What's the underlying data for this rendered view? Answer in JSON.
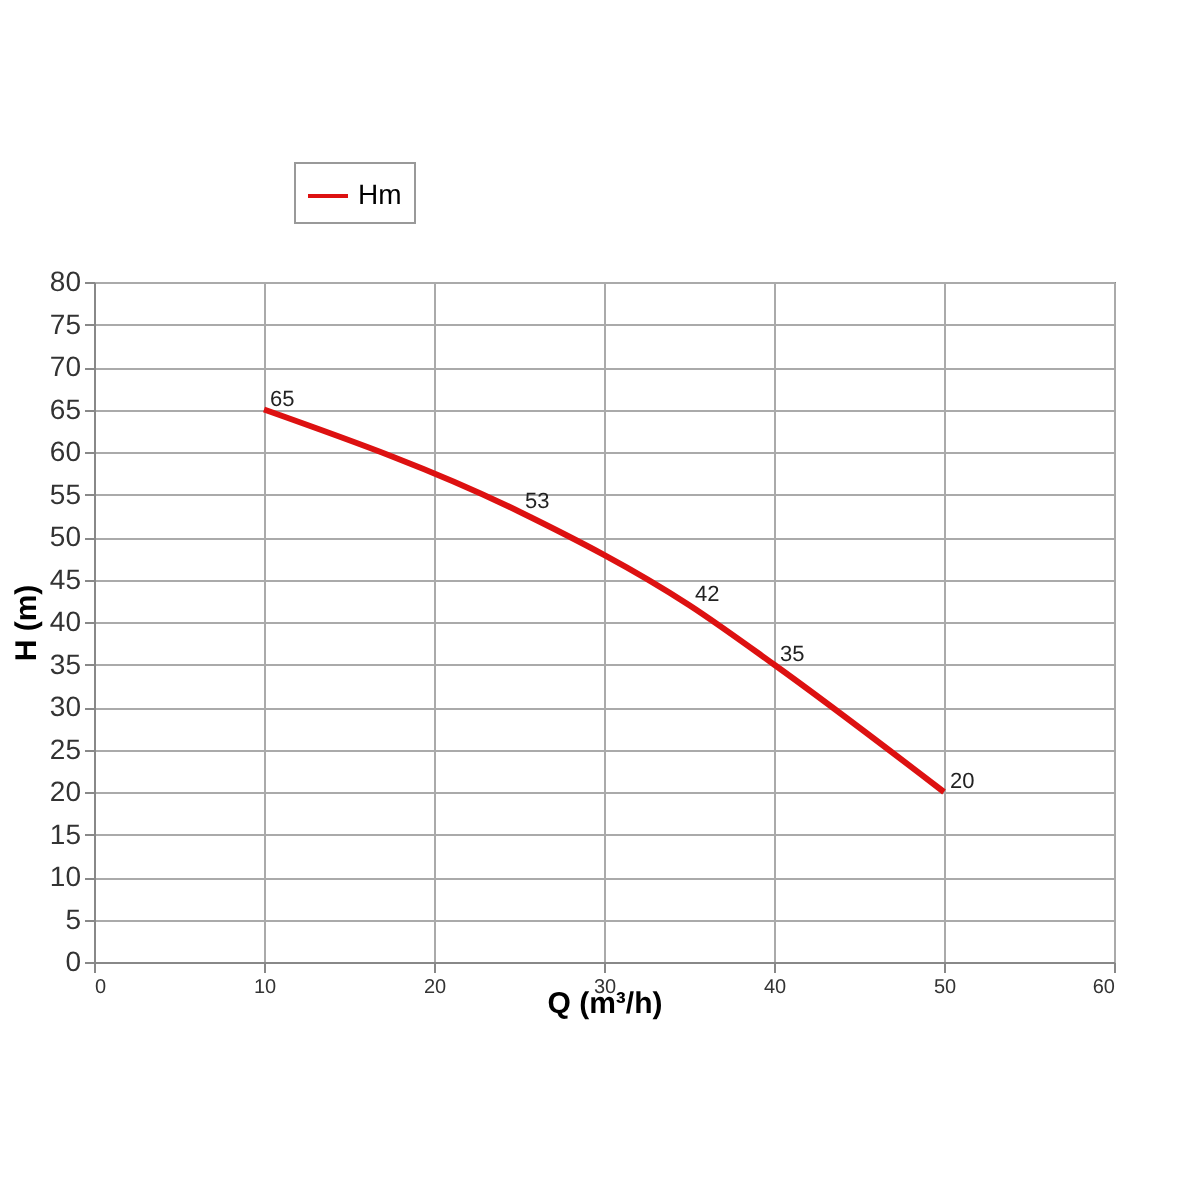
{
  "chart_data": {
    "type": "line",
    "xlabel": "Q (m³/h)",
    "ylabel": "H (m)",
    "x": [
      10,
      25,
      35,
      40,
      50
    ],
    "series": [
      {
        "name": "Hm",
        "color": "#dd1111",
        "values": [
          65,
          53,
          42,
          35,
          20
        ]
      }
    ],
    "xlim": [
      0,
      60
    ],
    "xticks": [
      0,
      10,
      20,
      30,
      40,
      50,
      60
    ],
    "ylim": [
      0,
      80
    ],
    "yticks": [
      0,
      5,
      10,
      15,
      20,
      25,
      30,
      35,
      40,
      45,
      50,
      55,
      60,
      65,
      70,
      75,
      80
    ],
    "grid": true,
    "legend": "top",
    "marker": "none",
    "line_style": "solid",
    "data_labels": true
  }
}
